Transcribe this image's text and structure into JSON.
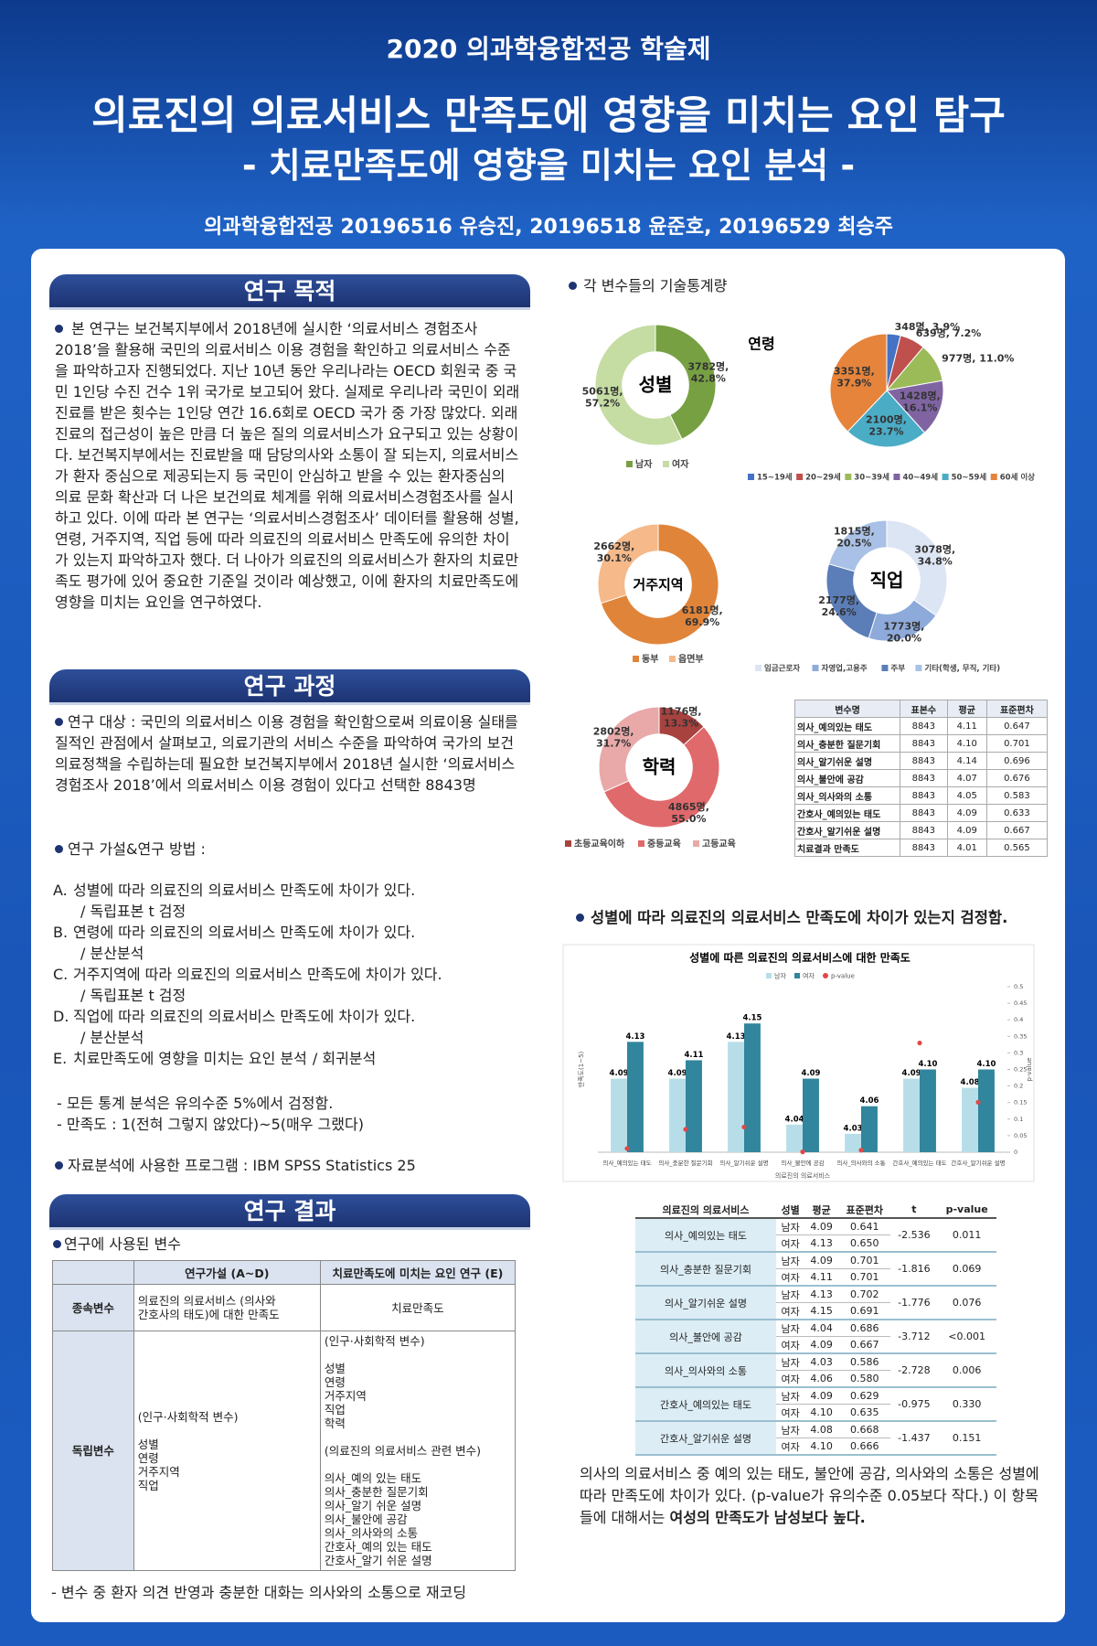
{
  "header": {
    "event": "2020 의과학융합전공 학술제",
    "title": "의료진의 의료서비스 만족도에 영향을 미치는 요인 탐구",
    "subtitle": "- 치료만족도에 영향을 미치는 요인 분석 -",
    "authors": "의과학융합전공 20196516 유승진, 20196518 윤준호, 20196529 최승주"
  },
  "objective": {
    "heading": "연구 목적",
    "text": "본 연구는 보건복지부에서 2018년에 실시한 ‘의료서비스 경험조사 2018’을 활용해 국민의 의료서비스 이용 경험을 확인하고 의료서비스 수준을 파악하고자 진행되었다. 지난 10년 동안 우리나라는 OECD 회원국 중 국민 1인당 수진 건수 1위 국가로 보고되어 왔다. 실제로 우리나라 국민이 외래 진료를 받은 횟수는 1인당 연간 16.6회로 OECD 국가 중 가장 많았다. 외래 진료의 접근성이 높은 만큼 더 높은 질의 의료서비스가 요구되고 있는 상황이다. 보건복지부에서는 진료받을 때 담당의사와 소통이 잘 되는지, 의료서비스가 환자 중심으로 제공되는지 등 국민이 안심하고 받을 수 있는 환자중심의 의료 문화 확산과 더 나은 보건의료 체계를 위해 의료서비스경험조사를 실시하고 있다. 이에 따라 본 연구는 ‘의료서비스경험조사’ 데이터를 활용해 성별, 연령, 거주지역, 직업 등에 따라 의료진의 의료서비스 만족도에 유의한 차이가 있는지 파악하고자 했다. 더 나아가 의료진의 의료서비스가 환자의 치료만족도 평가에 있어 중요한 기준일 것이라 예상했고, 이에 환자의 치료만족도에 영향을 미치는 요인을 연구하였다."
  },
  "process": {
    "heading": "연구 과정",
    "subject": "연구 대상 : 국민의 의료서비스 이용 경험을 확인함으로써 의료이용 실태를 질적인 관점에서 살펴보고, 의료기관의 서비스 수준을 파악하여 국가의 보건의료정책을 수립하는데 필요한 보건복지부에서 2018년 실시한 ‘의료서비스경험조사 2018’에서 의료서비스 이용 경험이 있다고 선택한 8843명",
    "methods_heading": "연구 가설&연구 방법 :",
    "hypotheses": [
      {
        "label": "A.",
        "text": "성별에 따라 의료진의 의료서비스 만족도에 차이가 있다.",
        "method": "/ 독립표본 t 검정"
      },
      {
        "label": "B.",
        "text": "연령에 따라 의료진의 의료서비스 만족도에 차이가 있다.",
        "method": "/ 분산분석"
      },
      {
        "label": "C.",
        "text": "거주지역에 따라 의료진의 의료서비스 만족도에 차이가 있다.",
        "method": "/ 독립표본 t 검정"
      },
      {
        "label": "D.",
        "text": "직업에 따라 의료진의 의료서비스 만족도에 차이가 있다.",
        "method": "/ 분산분석"
      },
      {
        "label": "E.",
        "text": "치료만족도에 영향을 미치는 요인 분석",
        "method": "/ 회귀분석"
      }
    ],
    "notes": [
      "- 모든 통계 분석은 유의수준 5%에서 검정함.",
      "- 만족도 : 1(전혀 그렇지 않았다)~5(매우 그랬다)"
    ],
    "program": "자료분석에 사용한 프로그램 : IBM SPSS Statistics 25"
  },
  "results": {
    "heading": "연구 결과",
    "variables_heading": "연구에 사용된 변수",
    "variables_table": {
      "header": [
        "연구가설 (A~D)",
        "치료만족도에 미치는 요인 연구 (E)"
      ],
      "rows": [
        [
          "종속변수",
          "의료진의 의료서비스 (의사와\n간호사의 태도)에 대한 만족도",
          "치료만족도"
        ],
        [
          "독립변수",
          "(인구·사회학적 변수)\n\n성별\n연령\n거주지역\n직업",
          "(인구·사회학적 변수)\n\n성별\n연령\n거주지역\n직업\n학력\n\n(의료진의 의료서비스 관련 변수)\n\n의사_예의 있는 태도\n의사_충분한 질문기회\n의사_알기 쉬운 설명\n의사_불안에 공감\n의사_의사와의 소통\n간호사_예의 있는 태도\n간호사_알기 쉬운 설명"
        ]
      ]
    },
    "note": "- 변수 중 환자 의견 반영과 충분한 대화는 의사와의 소통으로 재코딩"
  },
  "descriptive": {
    "heading": "각 변수들의 기술통계량",
    "table": {
      "header": [
        "변수명",
        "표본수",
        "평균",
        "표준편차"
      ],
      "rows": [
        [
          "의사_예의있는 태도",
          "8843",
          "4.11",
          "0.647"
        ],
        [
          "의사_충분한 질문기회",
          "8843",
          "4.10",
          "0.701"
        ],
        [
          "의사_알기쉬운 설명",
          "8843",
          "4.14",
          "0.696"
        ],
        [
          "의사_불안에 공감",
          "8843",
          "4.07",
          "0.676"
        ],
        [
          "의사_의사와의 소통",
          "8843",
          "4.05",
          "0.583"
        ],
        [
          "간호사_예의있는 태도",
          "8843",
          "4.09",
          "0.633"
        ],
        [
          "간호사_알기쉬운 설명",
          "8843",
          "4.09",
          "0.667"
        ],
        [
          "치료결과 만족도",
          "8843",
          "4.01",
          "0.565"
        ]
      ]
    }
  },
  "gender_test": {
    "heading": "성별에 따라 의료진의 의료서비스 만족도에 차이가 있는지 검정함.",
    "table": {
      "header": [
        "의료진의 의료서비스",
        "성별",
        "평균",
        "표준편차",
        "t",
        "p-value"
      ],
      "rows": [
        {
          "item": "의사_예의있는 태도",
          "groups": [
            [
              "남자",
              "4.09",
              "0.641"
            ],
            [
              "여자",
              "4.13",
              "0.650"
            ]
          ],
          "t": "-2.536",
          "p": "0.011"
        },
        {
          "item": "의사_충분한 질문기회",
          "groups": [
            [
              "남자",
              "4.09",
              "0.701"
            ],
            [
              "여자",
              "4.11",
              "0.701"
            ]
          ],
          "t": "-1.816",
          "p": "0.069"
        },
        {
          "item": "의사_알기쉬운 설명",
          "groups": [
            [
              "남자",
              "4.13",
              "0.702"
            ],
            [
              "여자",
              "4.15",
              "0.691"
            ]
          ],
          "t": "-1.776",
          "p": "0.076"
        },
        {
          "item": "의사_불안에 공감",
          "groups": [
            [
              "남자",
              "4.04",
              "0.686"
            ],
            [
              "여자",
              "4.09",
              "0.667"
            ]
          ],
          "t": "-3.712",
          "p": "<0.001"
        },
        {
          "item": "의사_의사와의 소통",
          "groups": [
            [
              "남자",
              "4.03",
              "0.586"
            ],
            [
              "여자",
              "4.06",
              "0.580"
            ]
          ],
          "t": "-2.728",
          "p": "0.006"
        },
        {
          "item": "간호사_예의있는 태도",
          "groups": [
            [
              "남자",
              "4.09",
              "0.629"
            ],
            [
              "여자",
              "4.10",
              "0.635"
            ]
          ],
          "t": "-0.975",
          "p": "0.330"
        },
        {
          "item": "간호사_알기쉬운 설명",
          "groups": [
            [
              "남자",
              "4.08",
              "0.668"
            ],
            [
              "여자",
              "4.10",
              "0.666"
            ]
          ],
          "t": "-1.437",
          "p": "0.151"
        }
      ]
    },
    "conclusion": "의사의 의료서비스 중 예의 있는 태도, 불안에 공감, 의사와의 소통은 성별에 따라 만족도에 차이가 있다. (p-value가 유의수준 0.05보다 작다.) 이 항목들에 대해서는 ",
    "conclusion_bold": "여성의 만족도가 남성보다 높다."
  },
  "chart_data": [
    {
      "type": "pie",
      "title": "성별",
      "donut": true,
      "categories": [
        "남자",
        "여자"
      ],
      "values": [
        3782,
        5061
      ],
      "value_labels": [
        "3782명,\n42.8%",
        "5061명,\n57.2%"
      ],
      "colors": [
        "#77a043",
        "#c5dca3"
      ],
      "legend": "bottom"
    },
    {
      "type": "pie",
      "title": "연령",
      "donut": false,
      "categories": [
        "15~19세",
        "20~29세",
        "30~39세",
        "40~49세",
        "50~59세",
        "60세 이상"
      ],
      "values": [
        348,
        639,
        977,
        1428,
        2100,
        3351
      ],
      "value_labels": [
        "348명, 3.9%",
        "639명, 7.2%",
        "977명, 11.0%",
        "1428명,\n16.1%",
        "2100명,\n23.7%",
        "3351명,\n37.9%"
      ],
      "colors": [
        "#4472c4",
        "#c0504d",
        "#9bbb59",
        "#8064a2",
        "#4bacc6",
        "#e6843c"
      ],
      "legend": "bottom"
    },
    {
      "type": "pie",
      "title": "거주지역",
      "donut": true,
      "categories": [
        "동부",
        "읍면부"
      ],
      "values": [
        6181,
        2662
      ],
      "value_labels": [
        "6181명,\n69.9%",
        "2662명,\n30.1%"
      ],
      "colors": [
        "#e0843a",
        "#f5b98a"
      ],
      "legend": "bottom"
    },
    {
      "type": "pie",
      "title": "직업",
      "donut": true,
      "categories": [
        "임금근로자",
        "자영업,고용주",
        "주부",
        "기타(학생, 무직, 기타)"
      ],
      "values": [
        3078,
        1773,
        2177,
        1815
      ],
      "value_labels": [
        "3078명,\n34.8%",
        "1773명,\n20.0%",
        "2177명,\n24.6%",
        "1815명,\n20.5%"
      ],
      "colors": [
        "#dce5f4",
        "#8eaadb",
        "#5b7db8",
        "#a9c1e6"
      ],
      "legend": "bottom"
    },
    {
      "type": "pie",
      "title": "학력",
      "donut": true,
      "categories": [
        "초등교육이하",
        "중등교육",
        "고등교육"
      ],
      "values": [
        1176,
        4865,
        2802
      ],
      "value_labels": [
        "1176명,\n13.3%",
        "4865명,\n55.0%",
        "2802명,\n31.7%"
      ],
      "colors": [
        "#a8423f",
        "#e0696b",
        "#e9a9a9"
      ],
      "legend": "bottom"
    },
    {
      "type": "bar",
      "title": "성별에 따른 의료진의 의료서비스에 대한 만족도",
      "xlabel": "의료진의 의료서비스",
      "ylabel": "만족도(1~5)",
      "y2label": "p-value",
      "legend": "top",
      "categories": [
        "의사_예의있는 태도",
        "의사_충분한 질문기회",
        "의사_알기쉬운 설명",
        "의사_불안에 공감",
        "의사_의사와의 소통",
        "간호사_예의있는 태도",
        "간호사_알기쉬운 설명"
      ],
      "series": [
        {
          "name": "남자",
          "color": "#b7dee8",
          "values": [
            4.09,
            4.09,
            4.13,
            4.04,
            4.03,
            4.09,
            4.08
          ]
        },
        {
          "name": "여자",
          "color": "#31859c",
          "values": [
            4.13,
            4.11,
            4.15,
            4.09,
            4.06,
            4.1,
            4.1
          ],
          "value_labels": [
            "4.13",
            "4.11",
            "4.15",
            "4.09",
            "4.06",
            "4.10",
            "4.10"
          ]
        },
        {
          "name": "p-value",
          "type": "scatter",
          "color": "#e04848",
          "axis": "y2",
          "values": [
            0.011,
            0.069,
            0.076,
            0.001,
            0.006,
            0.33,
            0.151
          ]
        }
      ],
      "ylim": [
        4.01,
        4.19
      ],
      "y2lim": [
        0,
        0.5
      ],
      "y2ticks": [
        0,
        0.05,
        0.1,
        0.15,
        0.2,
        0.25,
        0.3,
        0.35,
        0.4,
        0.45,
        0.5
      ]
    }
  ]
}
